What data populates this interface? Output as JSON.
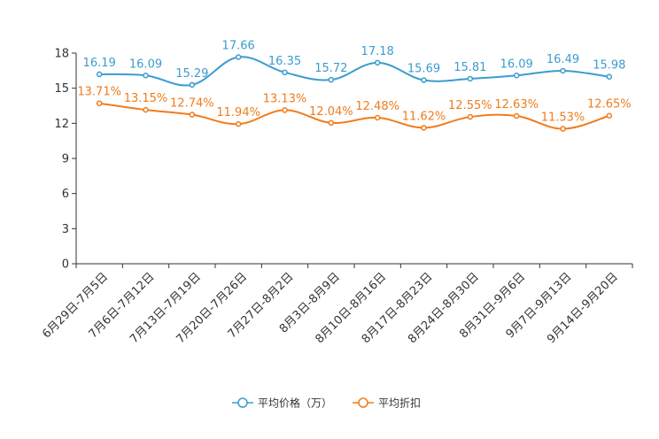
{
  "chart_data": {
    "type": "line",
    "title": "",
    "xlabel": "",
    "ylabel": "",
    "ylim": [
      0,
      18
    ],
    "yticks": [
      0,
      3,
      6,
      9,
      12,
      15,
      18
    ],
    "grid": false,
    "legend_position": "bottom-center",
    "categories": [
      "6月29日-7月5日",
      "7月6日-7月12日",
      "7月13日-7月19日",
      "7月20日-7月26日",
      "7月27日-8月2日",
      "8月3日-8月9日",
      "8月10日-8月16日",
      "8月17日-8月23日",
      "8月24日-8月30日",
      "8月31日-9月6日",
      "9月7日-9月13日",
      "9月14日-9月20日"
    ],
    "series": [
      {
        "name": "平均价格（万）",
        "color": "#3b9ccf",
        "values": [
          16.19,
          16.09,
          15.29,
          17.66,
          16.35,
          15.72,
          17.18,
          15.69,
          15.81,
          16.09,
          16.49,
          15.98
        ],
        "labels": [
          "16.19",
          "16.09",
          "15.29",
          "17.66",
          "16.35",
          "15.72",
          "17.18",
          "15.69",
          "15.81",
          "16.09",
          "16.49",
          "15.98"
        ]
      },
      {
        "name": "平均折扣",
        "color": "#f07c1c",
        "values": [
          13.71,
          13.15,
          12.74,
          11.94,
          13.13,
          12.04,
          12.48,
          11.62,
          12.55,
          12.63,
          11.53,
          12.65
        ],
        "labels": [
          "13.71%",
          "13.15%",
          "12.74%",
          "11.94%",
          "13.13%",
          "12.04%",
          "12.48%",
          "11.62%",
          "12.55%",
          "12.63%",
          "11.53%",
          "12.65%"
        ]
      }
    ]
  }
}
